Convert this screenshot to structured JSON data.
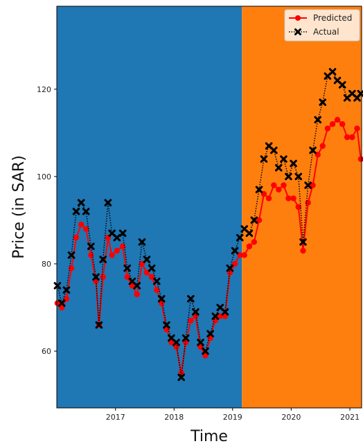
{
  "chart_data": {
    "type": "line",
    "title": "",
    "xlabel": "Time",
    "ylabel": "Price (in SAR)",
    "xlim": [
      "2016-01-01",
      "2021-03-15"
    ],
    "ylim": [
      47,
      139
    ],
    "x_ticks": [
      "2017",
      "2018",
      "2019",
      "2020",
      "2021"
    ],
    "y_ticks": [
      60,
      80,
      100,
      120
    ],
    "grid": false,
    "legend_position": "top-right",
    "background_regions": [
      {
        "from": "2016-01-01",
        "to": "2019-02-28",
        "color": "#1f77b4"
      },
      {
        "from": "2019-02-28",
        "to": "2021-03-15",
        "color": "#ff7f0e"
      }
    ],
    "series": [
      {
        "name": "Predicted",
        "color": "#ff0000",
        "marker": "circle",
        "line_style": "solid",
        "points": [
          [
            "2016-01-05",
            71
          ],
          [
            "2016-02-01",
            70
          ],
          [
            "2016-03-01",
            72
          ],
          [
            "2016-04-01",
            79
          ],
          [
            "2016-05-01",
            86
          ],
          [
            "2016-06-01",
            89
          ],
          [
            "2016-07-01",
            88
          ],
          [
            "2016-08-01",
            82
          ],
          [
            "2016-09-01",
            76
          ],
          [
            "2016-09-20",
            66
          ],
          [
            "2016-10-15",
            77
          ],
          [
            "2016-11-15",
            86
          ],
          [
            "2016-12-10",
            82
          ],
          [
            "2017-01-10",
            83
          ],
          [
            "2017-02-15",
            84
          ],
          [
            "2017-03-15",
            77
          ],
          [
            "2017-04-15",
            75
          ],
          [
            "2017-05-15",
            73
          ],
          [
            "2017-06-15",
            80
          ],
          [
            "2017-07-15",
            78
          ],
          [
            "2017-08-15",
            77
          ],
          [
            "2017-09-15",
            74
          ],
          [
            "2017-10-15",
            71
          ],
          [
            "2017-11-15",
            65
          ],
          [
            "2017-12-15",
            62
          ],
          [
            "2018-01-15",
            61
          ],
          [
            "2018-02-15",
            55
          ],
          [
            "2018-03-15",
            62
          ],
          [
            "2018-04-15",
            67
          ],
          [
            "2018-05-15",
            68
          ],
          [
            "2018-06-15",
            61
          ],
          [
            "2018-07-15",
            59
          ],
          [
            "2018-08-15",
            63
          ],
          [
            "2018-09-15",
            67
          ],
          [
            "2018-10-15",
            68
          ],
          [
            "2018-11-15",
            68
          ],
          [
            "2018-12-15",
            78
          ],
          [
            "2019-01-15",
            80
          ],
          [
            "2019-02-15",
            82
          ],
          [
            "2019-03-15",
            82
          ],
          [
            "2019-04-15",
            84
          ],
          [
            "2019-05-15",
            85
          ],
          [
            "2019-06-15",
            90
          ],
          [
            "2019-07-15",
            96
          ],
          [
            "2019-08-15",
            95
          ],
          [
            "2019-09-15",
            98
          ],
          [
            "2019-10-15",
            97
          ],
          [
            "2019-11-15",
            98
          ],
          [
            "2019-12-15",
            95
          ],
          [
            "2020-01-15",
            95
          ],
          [
            "2020-02-15",
            93
          ],
          [
            "2020-03-15",
            83
          ],
          [
            "2020-04-15",
            94
          ],
          [
            "2020-05-15",
            98
          ],
          [
            "2020-06-15",
            105
          ],
          [
            "2020-07-15",
            107
          ],
          [
            "2020-08-15",
            111
          ],
          [
            "2020-09-15",
            112
          ],
          [
            "2020-10-15",
            113
          ],
          [
            "2020-11-15",
            112
          ],
          [
            "2020-12-15",
            109
          ],
          [
            "2021-01-15",
            109
          ],
          [
            "2021-02-15",
            111
          ],
          [
            "2021-03-10",
            104
          ]
        ]
      },
      {
        "name": "Actual",
        "color": "#000000",
        "marker": "x",
        "line_style": "dotted",
        "points": [
          [
            "2016-01-05",
            75
          ],
          [
            "2016-02-01",
            71
          ],
          [
            "2016-03-01",
            74
          ],
          [
            "2016-04-01",
            82
          ],
          [
            "2016-05-01",
            92
          ],
          [
            "2016-06-01",
            94
          ],
          [
            "2016-07-01",
            92
          ],
          [
            "2016-08-01",
            84
          ],
          [
            "2016-09-01",
            77
          ],
          [
            "2016-09-20",
            66
          ],
          [
            "2016-10-15",
            81
          ],
          [
            "2016-11-15",
            94
          ],
          [
            "2016-12-10",
            87
          ],
          [
            "2017-01-10",
            86
          ],
          [
            "2017-02-15",
            87
          ],
          [
            "2017-03-15",
            79
          ],
          [
            "2017-04-15",
            76
          ],
          [
            "2017-05-15",
            75
          ],
          [
            "2017-06-15",
            85
          ],
          [
            "2017-07-15",
            81
          ],
          [
            "2017-08-15",
            79
          ],
          [
            "2017-09-15",
            76
          ],
          [
            "2017-10-15",
            72
          ],
          [
            "2017-11-15",
            66
          ],
          [
            "2017-12-15",
            63
          ],
          [
            "2018-01-15",
            62
          ],
          [
            "2018-02-15",
            54
          ],
          [
            "2018-03-15",
            63
          ],
          [
            "2018-04-15",
            72
          ],
          [
            "2018-05-15",
            69
          ],
          [
            "2018-06-15",
            62
          ],
          [
            "2018-07-15",
            60
          ],
          [
            "2018-08-15",
            64
          ],
          [
            "2018-09-15",
            68
          ],
          [
            "2018-10-15",
            70
          ],
          [
            "2018-11-15",
            69
          ],
          [
            "2018-12-15",
            79
          ],
          [
            "2019-01-15",
            83
          ],
          [
            "2019-02-15",
            86
          ],
          [
            "2019-03-15",
            88
          ],
          [
            "2019-04-15",
            87
          ],
          [
            "2019-05-15",
            90
          ],
          [
            "2019-06-15",
            97
          ],
          [
            "2019-07-15",
            104
          ],
          [
            "2019-08-15",
            107
          ],
          [
            "2019-09-15",
            106
          ],
          [
            "2019-10-15",
            102
          ],
          [
            "2019-11-15",
            104
          ],
          [
            "2019-12-15",
            100
          ],
          [
            "2020-01-15",
            103
          ],
          [
            "2020-02-15",
            100
          ],
          [
            "2020-03-15",
            85
          ],
          [
            "2020-04-15",
            98
          ],
          [
            "2020-05-15",
            106
          ],
          [
            "2020-06-15",
            113
          ],
          [
            "2020-07-15",
            117
          ],
          [
            "2020-08-15",
            123
          ],
          [
            "2020-09-15",
            124
          ],
          [
            "2020-10-15",
            122
          ],
          [
            "2020-11-15",
            121
          ],
          [
            "2020-12-15",
            118
          ],
          [
            "2021-01-15",
            119
          ],
          [
            "2021-02-15",
            118
          ],
          [
            "2021-03-10",
            119
          ]
        ]
      }
    ]
  }
}
